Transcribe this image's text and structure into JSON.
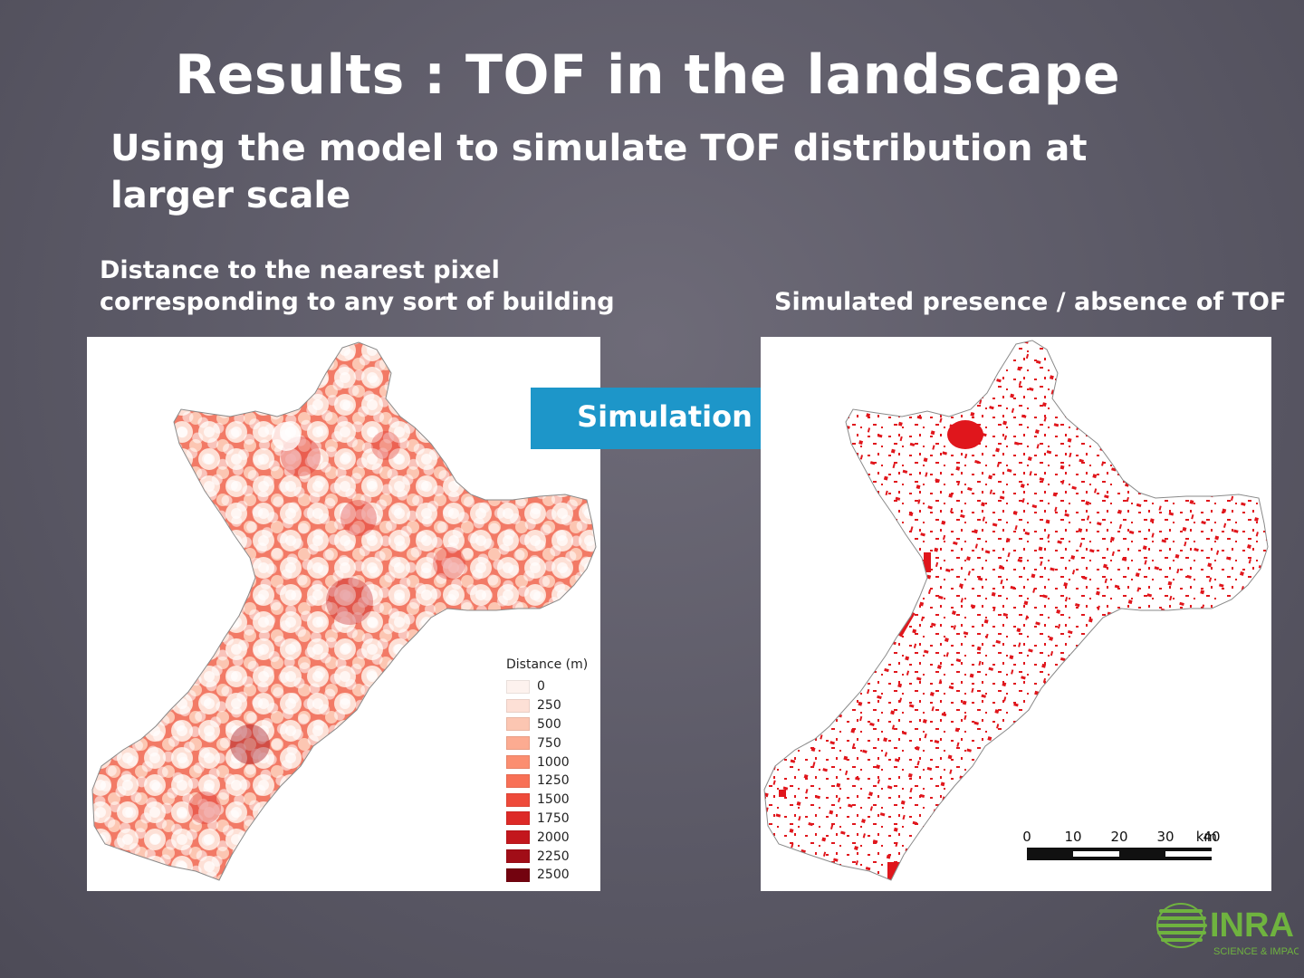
{
  "slide": {
    "title": "Results : TOF in the landscape",
    "subtitle": "Using the model to simulate TOF distribution at larger scale",
    "left_caption_line1": "Distance to the nearest pixel",
    "left_caption_line2": "corresponding to any sort of building",
    "right_caption": "Simulated presence / absence of TOF",
    "arrow_label": "Simulation"
  },
  "legend": {
    "title": "Distance (m)",
    "items": [
      {
        "label": "0",
        "color": "#fdf2ee"
      },
      {
        "label": "250",
        "color": "#fde0d6"
      },
      {
        "label": "500",
        "color": "#fcc6b2"
      },
      {
        "label": "750",
        "color": "#fcab91"
      },
      {
        "label": "1000",
        "color": "#fb8e70"
      },
      {
        "label": "1250",
        "color": "#f87056"
      },
      {
        "label": "1500",
        "color": "#ee4a3a"
      },
      {
        "label": "1750",
        "color": "#dd2a27"
      },
      {
        "label": "2000",
        "color": "#c3171d"
      },
      {
        "label": "2250",
        "color": "#a10d17"
      },
      {
        "label": "2500",
        "color": "#73030f"
      }
    ]
  },
  "scale_bar": {
    "ticks": [
      "0",
      "10",
      "20",
      "30",
      "40"
    ],
    "unit": "km"
  },
  "logo": {
    "name": "INRA",
    "tagline": "SCIENCE & IMPACT",
    "icon": "inra-logo-icon"
  },
  "colors": {
    "arrow": "#1d96c9",
    "simulated_tof": "#e0161c",
    "logo_green": "#6fb33f"
  }
}
